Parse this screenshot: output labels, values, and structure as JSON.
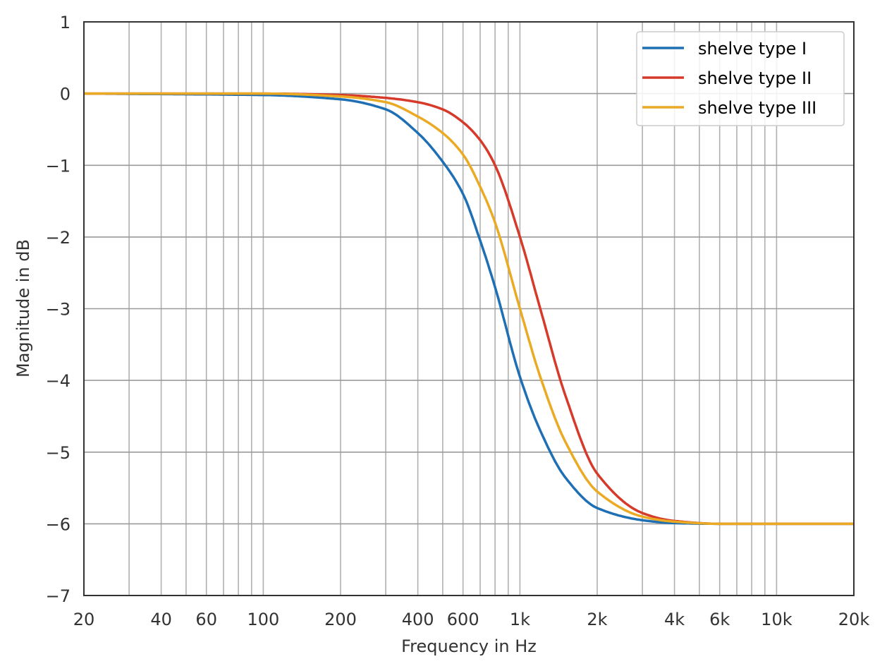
{
  "chart_data": {
    "type": "line",
    "title": "",
    "xlabel": "Frequency in Hz",
    "ylabel": "Magnitude in dB",
    "xscale": "log",
    "xlim": [
      20,
      20000
    ],
    "ylim": [
      -7,
      1
    ],
    "grid": true,
    "legend_position": "upper right",
    "x_ticks": [
      20,
      40,
      60,
      100,
      200,
      400,
      600,
      1000,
      2000,
      4000,
      6000,
      10000,
      20000
    ],
    "x_tick_labels": [
      "20",
      "40",
      "60",
      "100",
      "200",
      "400",
      "600",
      "1k",
      "2k",
      "4k",
      "6k",
      "10k",
      "20k"
    ],
    "y_ticks": [
      1,
      0,
      -1,
      -2,
      -3,
      -4,
      -5,
      -6,
      -7
    ],
    "y_tick_labels": [
      "1",
      "0",
      "−1",
      "−2",
      "−3",
      "−4",
      "−5",
      "−6",
      "−7"
    ],
    "x": [
      20,
      100,
      200,
      300,
      400,
      500,
      600,
      700,
      800,
      1000,
      1200,
      1500,
      2000,
      3000,
      4000,
      6000,
      10000,
      20000
    ],
    "series": [
      {
        "name": "shelve type I",
        "color": "#1f6fb4",
        "values": [
          0.0,
          -0.02,
          -0.08,
          -0.22,
          -0.55,
          -0.95,
          -1.4,
          -2.05,
          -2.7,
          -3.95,
          -4.7,
          -5.35,
          -5.78,
          -5.95,
          -5.99,
          -6.0,
          -6.0,
          -6.0
        ]
      },
      {
        "name": "shelve type II",
        "color": "#d63a2a",
        "values": [
          0.0,
          0.0,
          -0.02,
          -0.06,
          -0.12,
          -0.22,
          -0.4,
          -0.65,
          -1.0,
          -2.0,
          -3.0,
          -4.2,
          -5.3,
          -5.85,
          -5.96,
          -6.0,
          -6.0,
          -6.0
        ]
      },
      {
        "name": "shelve type III",
        "color": "#ebaa23",
        "values": [
          0.0,
          0.0,
          -0.04,
          -0.12,
          -0.32,
          -0.55,
          -0.85,
          -1.3,
          -1.8,
          -3.0,
          -3.95,
          -4.85,
          -5.55,
          -5.9,
          -5.97,
          -6.0,
          -6.0,
          -6.0
        ]
      }
    ]
  },
  "legend": {
    "items": [
      {
        "label": "shelve type I",
        "color": "#1f6fb4"
      },
      {
        "label": "shelve type II",
        "color": "#d63a2a"
      },
      {
        "label": "shelve type III",
        "color": "#ebaa23"
      }
    ]
  }
}
